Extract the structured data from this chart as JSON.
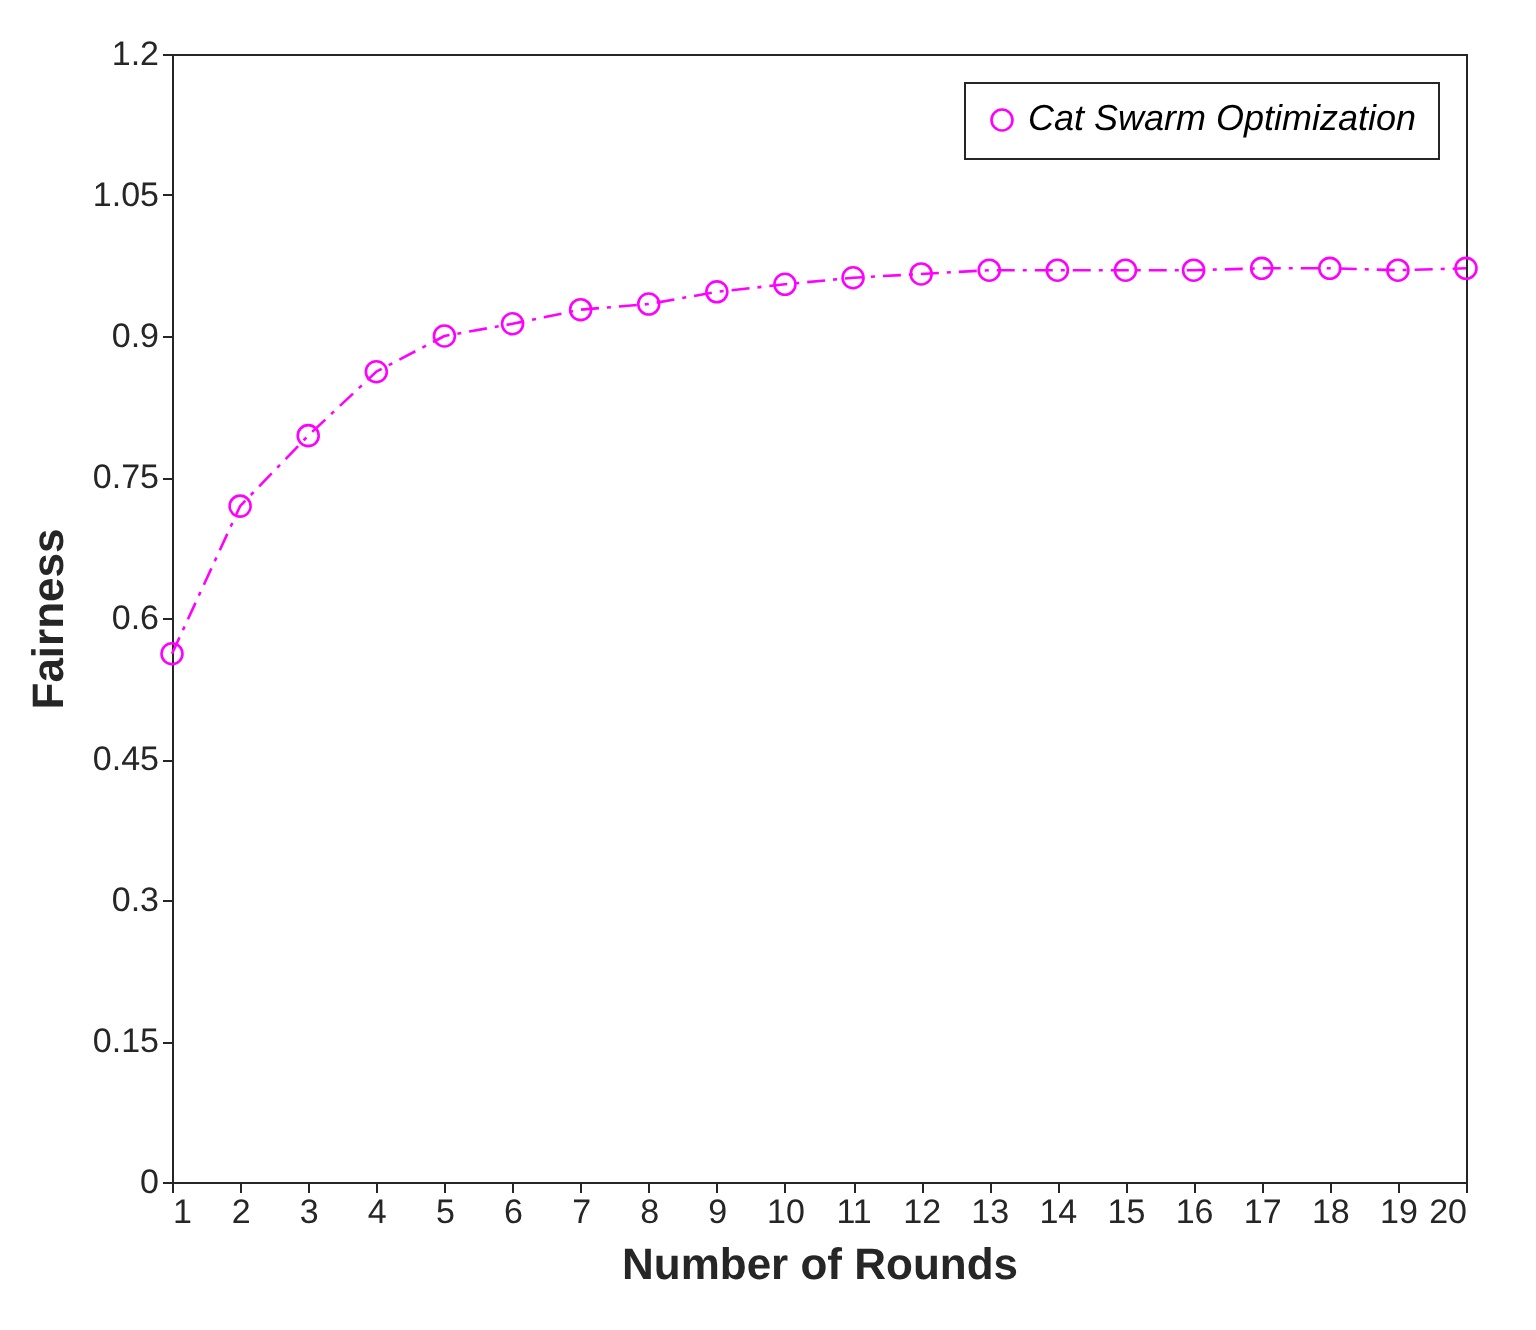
{
  "chart_data": {
    "type": "line",
    "xlabel": "Number of Rounds",
    "ylabel": "Fairness",
    "x": [
      1,
      2,
      3,
      4,
      5,
      6,
      7,
      8,
      9,
      10,
      11,
      12,
      13,
      14,
      15,
      16,
      17,
      18,
      19,
      20
    ],
    "series": [
      {
        "name": "Cat Swarm Optimization",
        "color": "#ff00ff",
        "values": [
          0.562,
          0.719,
          0.794,
          0.862,
          0.9,
          0.913,
          0.928,
          0.934,
          0.947,
          0.955,
          0.962,
          0.966,
          0.97,
          0.97,
          0.97,
          0.97,
          0.972,
          0.972,
          0.97,
          0.972
        ]
      }
    ],
    "xlim": [
      1,
      20
    ],
    "xticks": [
      1,
      2,
      3,
      4,
      5,
      6,
      7,
      8,
      9,
      10,
      11,
      12,
      13,
      14,
      15,
      16,
      17,
      18,
      19,
      20
    ],
    "ylim": [
      0,
      1.2
    ],
    "yticks": [
      0,
      0.15,
      0.3,
      0.45,
      0.6,
      0.75,
      0.9,
      1.05,
      1.2
    ],
    "grid": false,
    "legend": "top right",
    "marker": "circle",
    "line_style": "dashed"
  }
}
